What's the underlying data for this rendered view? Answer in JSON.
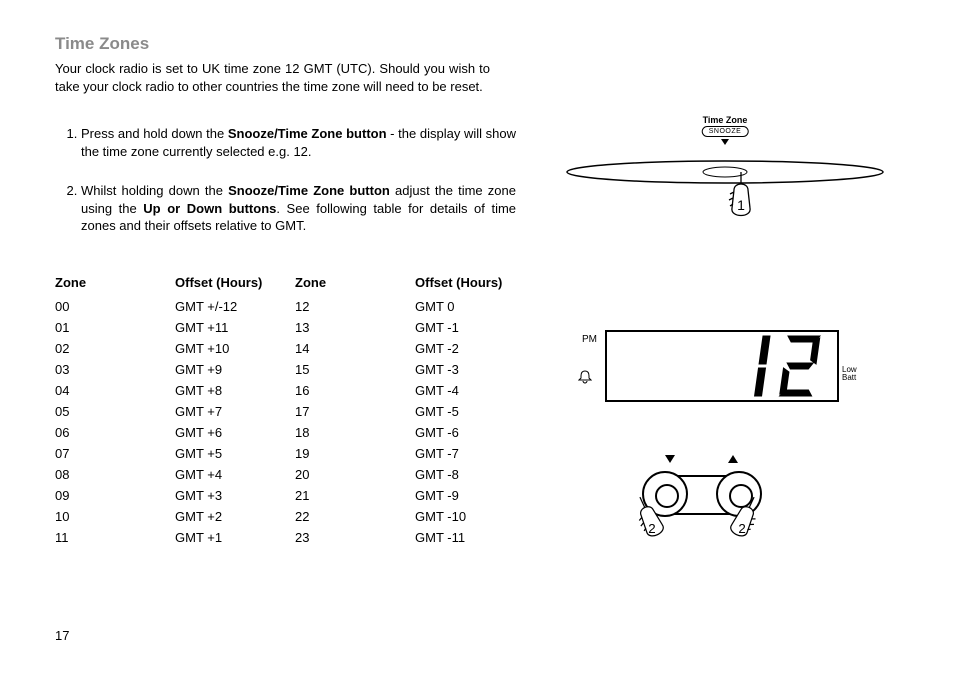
{
  "heading": "Time Zones",
  "intro": "Your clock radio is set to UK time zone 12 GMT (UTC). Should you wish to take your clock radio to other countries the time zone will need to be reset.",
  "step1": {
    "prefix": "Press and hold down the ",
    "bold": "Snooze/Time Zone button",
    "suffix": " - the display will show the time zone currently selected e.g. 12."
  },
  "step2": {
    "p1": "Whilst holding down the ",
    "b1": "Snooze/Time Zone button",
    "p2": " adjust the time zone using the ",
    "b2": "Up or Down buttons",
    "p3": ". See following table for details of time zones and their offsets relative to GMT."
  },
  "headers": {
    "zone": "Zone",
    "offset": "Offset (Hours)"
  },
  "left": [
    {
      "z": "00",
      "o": "GMT +/-12"
    },
    {
      "z": "01",
      "o": "GMT +11"
    },
    {
      "z": "02",
      "o": "GMT +10"
    },
    {
      "z": "03",
      "o": "GMT +9"
    },
    {
      "z": "04",
      "o": "GMT +8"
    },
    {
      "z": "05",
      "o": "GMT +7"
    },
    {
      "z": "06",
      "o": "GMT +6"
    },
    {
      "z": "07",
      "o": "GMT +5"
    },
    {
      "z": "08",
      "o": "GMT +4"
    },
    {
      "z": "09",
      "o": "GMT +3"
    },
    {
      "z": "10",
      "o": "GMT +2"
    },
    {
      "z": "11",
      "o": "GMT +1"
    }
  ],
  "right": [
    {
      "z": "12",
      "o": "GMT  0"
    },
    {
      "z": "13",
      "o": "GMT -1"
    },
    {
      "z": "14",
      "o": "GMT -2"
    },
    {
      "z": "15",
      "o": "GMT -3"
    },
    {
      "z": "16",
      "o": "GMT -4"
    },
    {
      "z": "17",
      "o": "GMT -5"
    },
    {
      "z": "18",
      "o": "GMT -6"
    },
    {
      "z": "19",
      "o": "GMT -7"
    },
    {
      "z": "20",
      "o": "GMT -8"
    },
    {
      "z": "21",
      "o": "GMT -9"
    },
    {
      "z": "22",
      "o": "GMT -10"
    },
    {
      "z": "23",
      "o": "GMT -11"
    }
  ],
  "pageNum": "17",
  "illus": {
    "tzLabel": "Time Zone",
    "snoozeBtn": "SNOOZE",
    "hand1Num": "1",
    "pm": "PM",
    "bell": "🔔",
    "digits": "12",
    "lowbatt1": "Low",
    "lowbatt2": "Batt",
    "hand2Num": "2"
  }
}
